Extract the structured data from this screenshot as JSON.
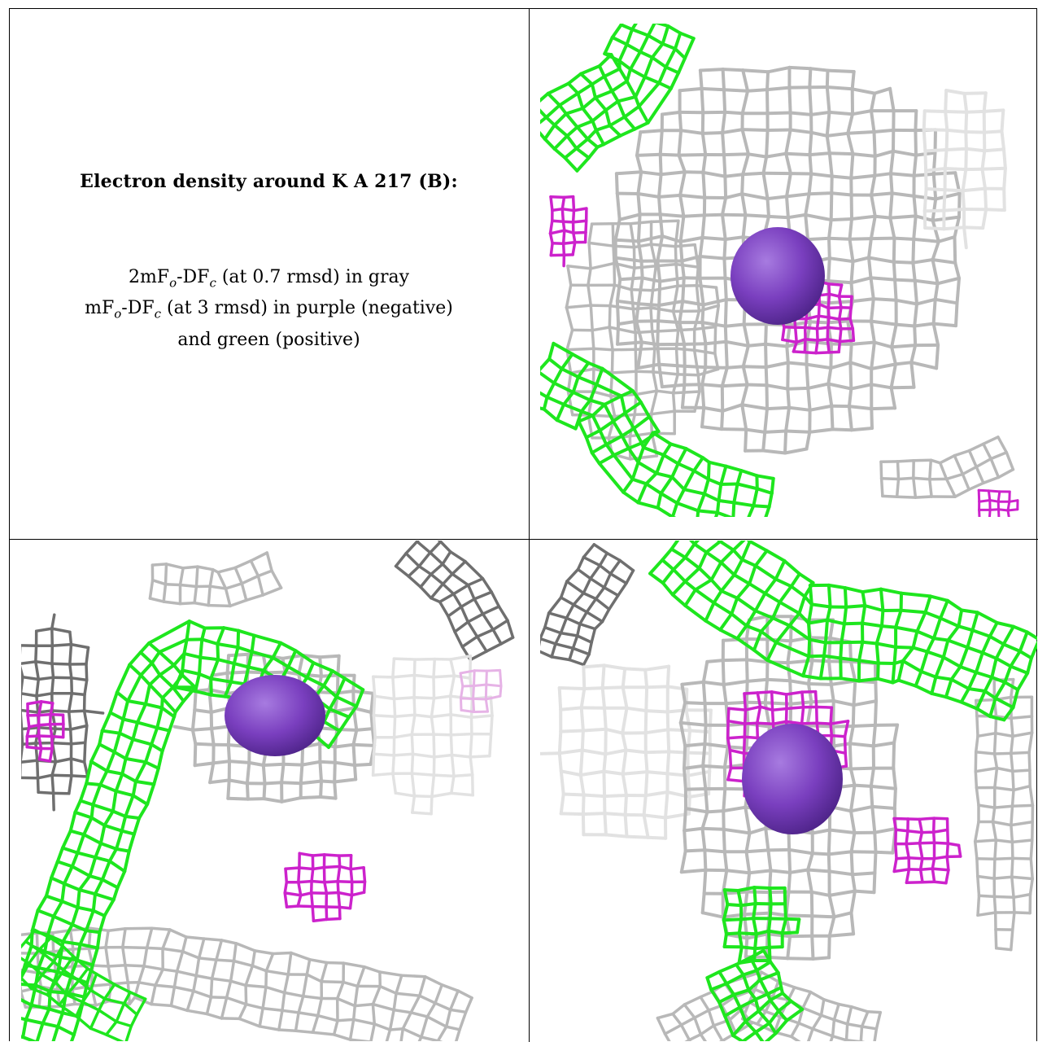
{
  "caption": {
    "title": "Electron density around K A 217 (B):",
    "line1": {
      "prefix": "2mF",
      "sub1": "o",
      "mid": "-DF",
      "sub2": "c",
      "suffix": " (at 0.7 rmsd) in gray"
    },
    "line2": {
      "prefix": "mF",
      "sub1": "o",
      "mid": "-DF",
      "sub2": "c",
      "suffix": " (at 3 rmsd) in purple (negative)"
    },
    "line3": "and green (positive)"
  },
  "colors": {
    "gray_mesh": "#b8b8b8",
    "gray_mesh_dark": "#6f6f6f",
    "gray_mesh_light": "#e2e2e2",
    "positive_green": "#1ee61e",
    "negative_magenta": "#cc22cc",
    "atom_purple": "#7a3fbf"
  },
  "panels": [
    {
      "name": "top-right-view"
    },
    {
      "name": "bottom-left-view"
    },
    {
      "name": "bottom-right-view"
    }
  ]
}
